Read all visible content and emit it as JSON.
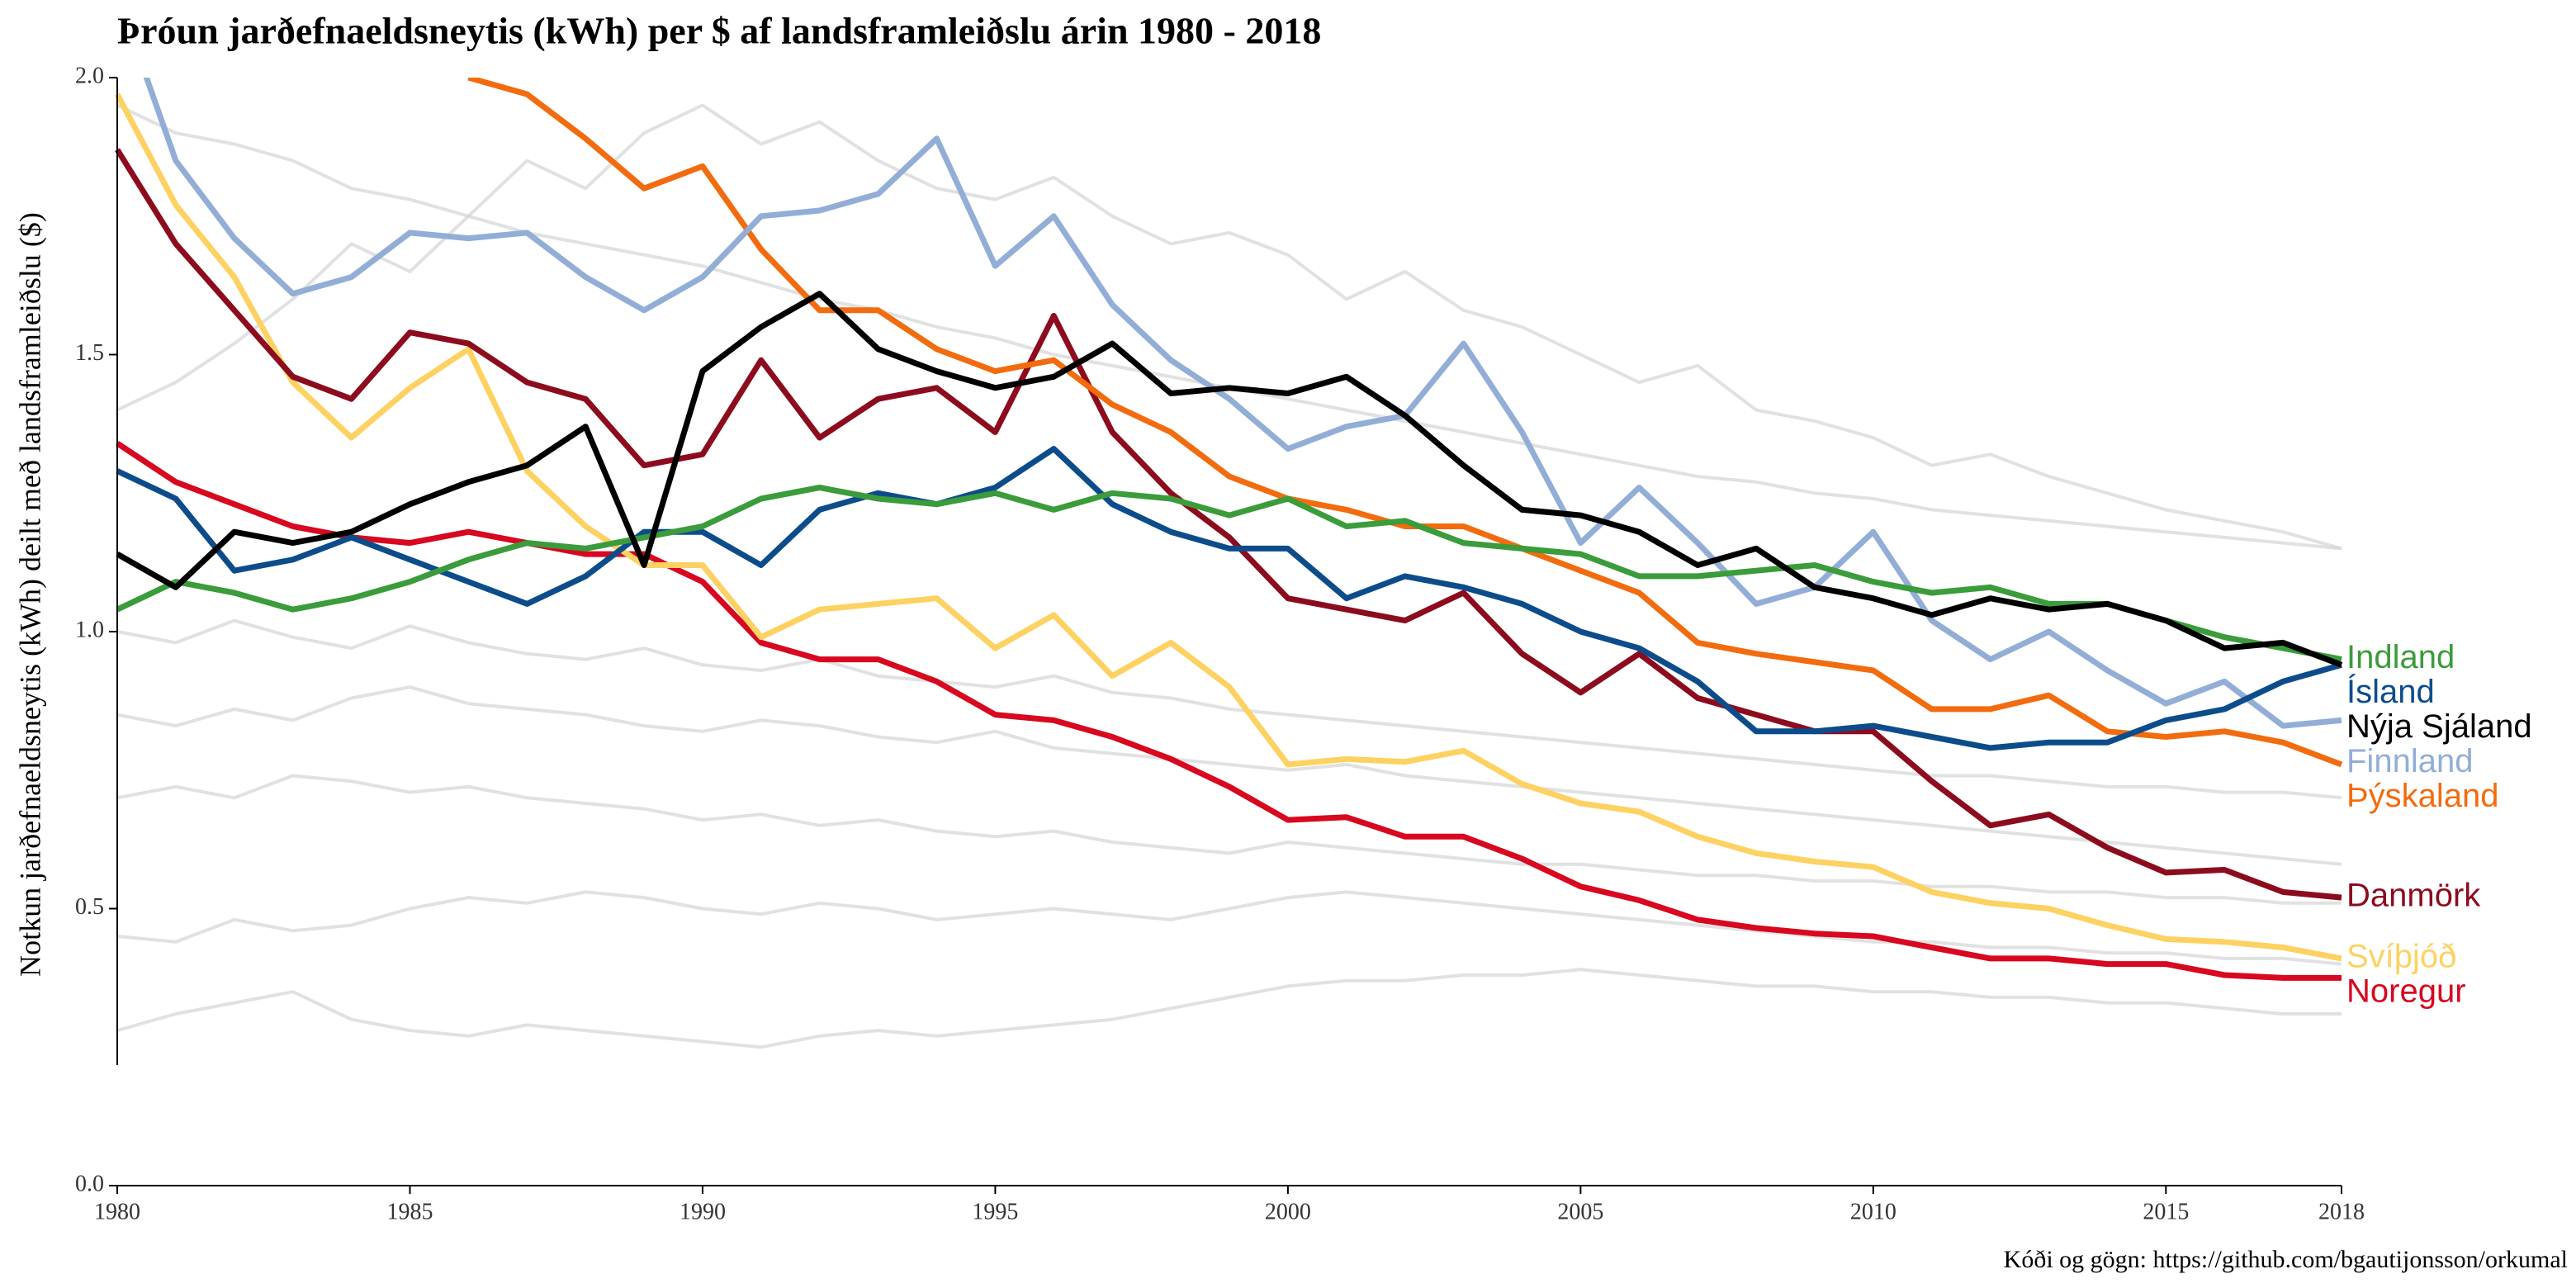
{
  "chart_data": {
    "type": "line",
    "title": "Þróun jarðefnaeldsneytis (kWh) per $ af landsframleiðslu árin 1980 - 2018",
    "y_label": "Notkun jarðefnaeldsneytis (kWh) deilt með landsframleiðslu ($)",
    "caption": "Kóði og gögn: https://github.com/bgautijonsson/orkumal",
    "x": [
      1980,
      1981,
      1982,
      1983,
      1984,
      1985,
      1986,
      1987,
      1988,
      1989,
      1990,
      1991,
      1992,
      1993,
      1994,
      1995,
      1996,
      1997,
      1998,
      1999,
      2000,
      2001,
      2002,
      2003,
      2004,
      2005,
      2006,
      2007,
      2008,
      2009,
      2010,
      2011,
      2012,
      2013,
      2014,
      2015,
      2016,
      2017,
      2018
    ],
    "xlim": [
      1980,
      2018
    ],
    "xticks": [
      1980,
      1985,
      1990,
      1995,
      2000,
      2005,
      2010,
      2015,
      2018
    ],
    "ylim": [
      0,
      2
    ],
    "yticks": [
      {
        "value": 0,
        "label": "0.0"
      },
      0.5,
      {
        "value": 1,
        "label": "1.0"
      },
      1.5,
      {
        "value": 2,
        "label": "2.0"
      }
    ],
    "grid": false,
    "series": [
      {
        "color": "#d4d4d4",
        "values": [
          0.45,
          0.44,
          0.48,
          0.46,
          0.47,
          0.5,
          0.52,
          0.51,
          0.53,
          0.52,
          0.5,
          0.49,
          0.51,
          0.5,
          0.48,
          0.49,
          0.5,
          0.49,
          0.48,
          0.5,
          0.52,
          0.53,
          0.52,
          0.51,
          0.5,
          0.49,
          0.48,
          0.47,
          0.46,
          0.45,
          0.44,
          0.44,
          0.43,
          0.43,
          0.42,
          0.42,
          0.41,
          0.41,
          0.4
        ]
      },
      {
        "color": "#d4d4d4",
        "values": [
          0.28,
          0.31,
          0.33,
          0.35,
          0.3,
          0.28,
          0.27,
          0.29,
          0.28,
          0.27,
          0.26,
          0.25,
          0.27,
          0.28,
          0.27,
          0.28,
          0.29,
          0.3,
          0.32,
          0.34,
          0.36,
          0.37,
          0.37,
          0.38,
          0.38,
          0.39,
          0.38,
          0.37,
          0.36,
          0.36,
          0.35,
          0.35,
          0.34,
          0.34,
          0.33,
          0.33,
          0.32,
          0.31,
          0.31
        ]
      },
      {
        "color": "#d4d4d4",
        "values": [
          0.85,
          0.83,
          0.86,
          0.84,
          0.88,
          0.9,
          0.87,
          0.86,
          0.85,
          0.83,
          0.82,
          0.84,
          0.83,
          0.81,
          0.8,
          0.82,
          0.79,
          0.78,
          0.77,
          0.76,
          0.75,
          0.76,
          0.74,
          0.73,
          0.72,
          0.71,
          0.7,
          0.69,
          0.68,
          0.67,
          0.66,
          0.65,
          0.64,
          0.63,
          0.62,
          0.61,
          0.6,
          0.59,
          0.58
        ]
      },
      {
        "color": "#d4d4d4",
        "values": [
          1.95,
          1.9,
          1.88,
          1.85,
          1.8,
          1.78,
          1.75,
          1.72,
          1.7,
          1.68,
          1.66,
          1.63,
          1.6,
          1.58,
          1.55,
          1.53,
          1.5,
          1.48,
          1.46,
          1.44,
          1.42,
          1.4,
          1.38,
          1.36,
          1.34,
          1.32,
          1.3,
          1.28,
          1.27,
          1.25,
          1.24,
          1.22,
          1.21,
          1.2,
          1.19,
          1.18,
          1.17,
          1.16,
          1.15
        ]
      },
      {
        "color": "#d4d4d4",
        "values": [
          1.0,
          0.98,
          1.02,
          0.99,
          0.97,
          1.01,
          0.98,
          0.96,
          0.95,
          0.97,
          0.94,
          0.93,
          0.95,
          0.92,
          0.91,
          0.9,
          0.92,
          0.89,
          0.88,
          0.86,
          0.85,
          0.84,
          0.83,
          0.82,
          0.81,
          0.8,
          0.79,
          0.78,
          0.77,
          0.76,
          0.75,
          0.74,
          0.74,
          0.73,
          0.72,
          0.72,
          0.71,
          0.71,
          0.7
        ]
      },
      {
        "color": "#d4d4d4",
        "values": [
          1.4,
          1.45,
          1.52,
          1.6,
          1.7,
          1.65,
          1.75,
          1.85,
          1.8,
          1.9,
          1.95,
          1.88,
          1.92,
          1.85,
          1.8,
          1.78,
          1.82,
          1.75,
          1.7,
          1.72,
          1.68,
          1.6,
          1.65,
          1.58,
          1.55,
          1.5,
          1.45,
          1.48,
          1.4,
          1.38,
          1.35,
          1.3,
          1.32,
          1.28,
          1.25,
          1.22,
          1.2,
          1.18,
          1.15
        ]
      },
      {
        "color": "#d4d4d4",
        "values": [
          0.7,
          0.72,
          0.7,
          0.74,
          0.73,
          0.71,
          0.72,
          0.7,
          0.69,
          0.68,
          0.66,
          0.67,
          0.65,
          0.66,
          0.64,
          0.63,
          0.64,
          0.62,
          0.61,
          0.6,
          0.62,
          0.61,
          0.6,
          0.59,
          0.58,
          0.58,
          0.57,
          0.56,
          0.56,
          0.55,
          0.55,
          0.54,
          0.54,
          0.53,
          0.53,
          0.52,
          0.52,
          0.51,
          0.51
        ]
      },
      {
        "name": "Noregur",
        "color": "#d7081f",
        "values": [
          1.34,
          1.27,
          1.23,
          1.19,
          1.17,
          1.16,
          1.18,
          1.16,
          1.14,
          1.14,
          1.09,
          0.98,
          0.95,
          0.95,
          0.91,
          0.85,
          0.84,
          0.81,
          0.77,
          0.72,
          0.66,
          0.665,
          0.63,
          0.63,
          0.59,
          0.54,
          0.515,
          0.48,
          0.465,
          0.455,
          0.45,
          0.43,
          0.41,
          0.41,
          0.4,
          0.4,
          0.38,
          0.375,
          0.375
        ]
      },
      {
        "name": "Svíþjóð",
        "color": "#fdd262",
        "values": [
          1.97,
          1.77,
          1.64,
          1.45,
          1.35,
          1.44,
          1.51,
          1.29,
          1.19,
          1.12,
          1.12,
          0.99,
          1.04,
          1.05,
          1.06,
          0.97,
          1.03,
          0.92,
          0.98,
          0.9,
          0.76,
          0.77,
          0.765,
          0.785,
          0.725,
          0.69,
          0.675,
          0.63,
          0.6,
          0.585,
          0.575,
          0.53,
          0.51,
          0.5,
          0.47,
          0.445,
          0.44,
          0.43,
          0.41
        ]
      },
      {
        "name": "Danmörk",
        "color": "#8c0c1e",
        "values": [
          1.87,
          1.7,
          1.58,
          1.46,
          1.42,
          1.54,
          1.52,
          1.45,
          1.42,
          1.3,
          1.32,
          1.49,
          1.35,
          1.42,
          1.44,
          1.36,
          1.57,
          1.36,
          1.25,
          1.17,
          1.06,
          1.04,
          1.02,
          1.07,
          0.96,
          0.89,
          0.96,
          0.88,
          0.85,
          0.82,
          0.82,
          0.73,
          0.65,
          0.67,
          0.61,
          0.565,
          0.57,
          0.53,
          0.52
        ]
      },
      {
        "name": "Þýskaland",
        "color": "#f26c0f",
        "values": [
          null,
          null,
          null,
          null,
          null,
          null,
          2.0,
          1.97,
          1.89,
          1.8,
          1.84,
          1.69,
          1.58,
          1.58,
          1.51,
          1.47,
          1.49,
          1.41,
          1.36,
          1.28,
          1.24,
          1.22,
          1.19,
          1.19,
          1.15,
          1.11,
          1.07,
          0.98,
          0.96,
          0.945,
          0.93,
          0.86,
          0.86,
          0.885,
          0.82,
          0.81,
          0.82,
          0.8,
          0.76
        ]
      },
      {
        "name": "Finnland",
        "color": "#92aed6",
        "values": [
          2.15,
          1.85,
          1.71,
          1.61,
          1.64,
          1.72,
          1.71,
          1.72,
          1.64,
          1.58,
          1.64,
          1.75,
          1.76,
          1.79,
          1.89,
          1.66,
          1.75,
          1.59,
          1.49,
          1.42,
          1.33,
          1.37,
          1.39,
          1.52,
          1.36,
          1.16,
          1.26,
          1.16,
          1.05,
          1.08,
          1.18,
          1.02,
          0.95,
          1.0,
          0.93,
          0.87,
          0.91,
          0.83,
          0.84
        ]
      },
      {
        "name": "Ísland",
        "color": "#0d4c8b",
        "values": [
          1.29,
          1.24,
          1.11,
          1.13,
          1.17,
          1.13,
          1.09,
          1.05,
          1.1,
          1.18,
          1.18,
          1.12,
          1.22,
          1.25,
          1.23,
          1.26,
          1.33,
          1.23,
          1.18,
          1.15,
          1.15,
          1.06,
          1.1,
          1.08,
          1.05,
          1.0,
          0.97,
          0.91,
          0.82,
          0.82,
          0.83,
          0.81,
          0.79,
          0.8,
          0.8,
          0.84,
          0.86,
          0.91,
          0.94
        ]
      },
      {
        "name": "Indland",
        "color": "#3a9c3a",
        "values": [
          1.04,
          1.09,
          1.07,
          1.04,
          1.06,
          1.09,
          1.13,
          1.16,
          1.15,
          1.17,
          1.19,
          1.24,
          1.26,
          1.24,
          1.23,
          1.25,
          1.22,
          1.25,
          1.24,
          1.21,
          1.24,
          1.19,
          1.2,
          1.16,
          1.15,
          1.14,
          1.1,
          1.1,
          1.11,
          1.12,
          1.09,
          1.07,
          1.08,
          1.05,
          1.05,
          1.02,
          0.99,
          0.97,
          0.95
        ]
      },
      {
        "name": "Nýja Sjáland",
        "color": "#000000",
        "values": [
          1.14,
          1.08,
          1.18,
          1.16,
          1.18,
          1.23,
          1.27,
          1.3,
          1.37,
          1.12,
          1.47,
          1.55,
          1.61,
          1.51,
          1.47,
          1.44,
          1.46,
          1.52,
          1.43,
          1.44,
          1.43,
          1.46,
          1.39,
          1.3,
          1.22,
          1.21,
          1.18,
          1.12,
          1.15,
          1.08,
          1.06,
          1.03,
          1.06,
          1.04,
          1.05,
          1.02,
          0.97,
          0.98,
          0.94
        ]
      }
    ]
  }
}
